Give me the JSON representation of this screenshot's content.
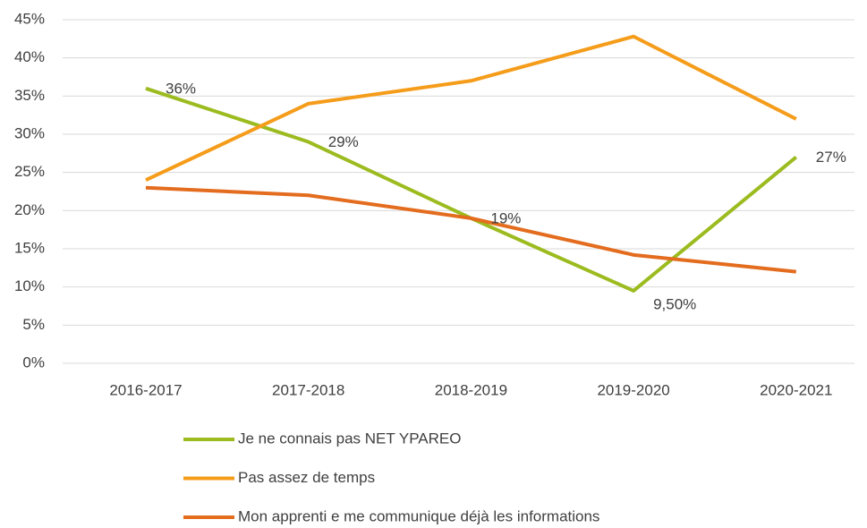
{
  "chart_data": {
    "type": "line",
    "categories": [
      "2016-2017",
      "2017-2018",
      "2018-2019",
      "2019-2020",
      "2020-2021"
    ],
    "series": [
      {
        "name": "Je ne connais pas NET YPAREO",
        "color": "#9bbb1f",
        "values": [
          36,
          29,
          19,
          9.5,
          27
        ],
        "value_labels": [
          "36%",
          "29%",
          "19%",
          "9,50%",
          "27%"
        ]
      },
      {
        "name": "Pas assez de temps",
        "color": "#f59c1a",
        "values": [
          24,
          34,
          37,
          42.8,
          32
        ]
      },
      {
        "name": "Mon apprenti e me communique déjà les informations",
        "color": "#e36c1e",
        "values": [
          23,
          22,
          19,
          14.2,
          12
        ]
      }
    ],
    "ylim": [
      0,
      45
    ],
    "yticks": [
      {
        "value": 0,
        "label": "0%"
      },
      {
        "value": 5,
        "label": "5%"
      },
      {
        "value": 10,
        "label": "10%"
      },
      {
        "value": 15,
        "label": "15%"
      },
      {
        "value": 20,
        "label": "20%"
      },
      {
        "value": 25,
        "label": "25%"
      },
      {
        "value": 30,
        "label": "30%"
      },
      {
        "value": 35,
        "label": "35%"
      },
      {
        "value": 40,
        "label": "40%"
      },
      {
        "value": 45,
        "label": "45%"
      }
    ],
    "grid": true,
    "legend": "bottom"
  }
}
